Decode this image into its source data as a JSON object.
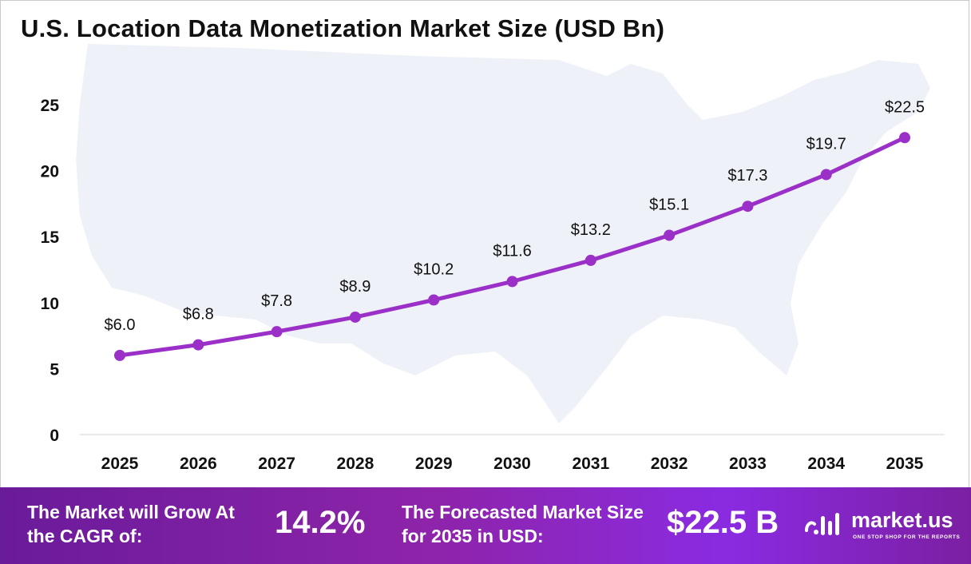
{
  "title": "U.S. Location Data Monetization  Market Size (USD Bn)",
  "chart_data": {
    "type": "line",
    "categories": [
      "2025",
      "2026",
      "2027",
      "2028",
      "2029",
      "2030",
      "2031",
      "2032",
      "2033",
      "2034",
      "2035"
    ],
    "values": [
      6.0,
      6.8,
      7.8,
      8.9,
      10.2,
      11.6,
      13.2,
      15.1,
      17.3,
      19.7,
      22.5
    ],
    "data_labels": [
      "$6.0",
      "$6.8",
      "$7.8",
      "$8.9",
      "$10.2",
      "$11.6",
      "$13.2",
      "$15.1",
      "$17.3",
      "$19.7",
      "$22.5"
    ],
    "yticks": [
      "0",
      "5",
      "10",
      "15",
      "20",
      "25"
    ],
    "ylim": [
      0,
      25
    ],
    "xlabel": "",
    "ylabel": "",
    "grid": false,
    "line_color": "#9b30c8",
    "background_map_color": "#eef1f8"
  },
  "banner": {
    "cagr_label": "The Market will Grow At the CAGR of:",
    "cagr_value": "14.2%",
    "forecast_label": "The Forecasted Market Size for 2035 in USD:",
    "forecast_value": "$22.5 B",
    "brand_name": "market.us",
    "brand_tagline": "ONE STOP SHOP FOR THE REPORTS"
  }
}
